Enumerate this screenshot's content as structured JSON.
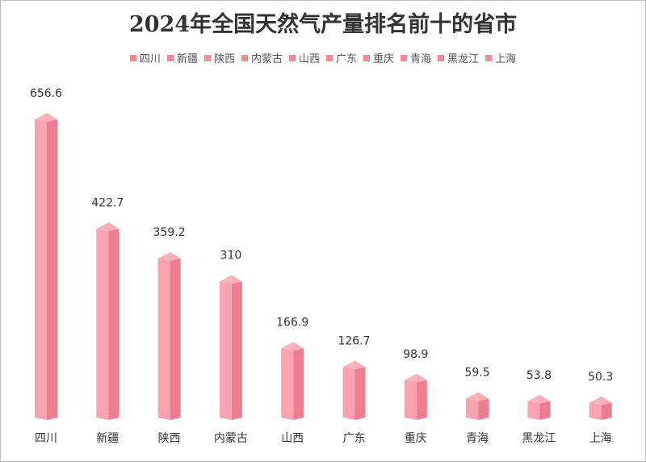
{
  "chart_data": {
    "type": "bar",
    "title": "2024年全国天然气产量排名前十的省市",
    "categories": [
      "四川",
      "新疆",
      "陕西",
      "内蒙古",
      "山西",
      "广东",
      "重庆",
      "青海",
      "黑龙江",
      "上海"
    ],
    "values": [
      656.6,
      422.7,
      359.2,
      310,
      166.9,
      126.7,
      98.9,
      59.5,
      53.8,
      50.3
    ],
    "data_labels": [
      "656.6",
      "422.7",
      "359.2",
      "310",
      "166.9",
      "126.7",
      "98.9",
      "59.5",
      "53.8",
      "50.3"
    ],
    "legend": [
      "四川",
      "新疆",
      "陕西",
      "内蒙古",
      "山西",
      "广东",
      "重庆",
      "青海",
      "黑龙江",
      "上海"
    ],
    "legend_position": "top",
    "ylim": [
      0,
      700
    ],
    "grid": false,
    "xlabel": "",
    "ylabel": "",
    "colors": {
      "bar_front": "#f9a3b0",
      "bar_side": "#ee7d90",
      "bar_top": "#f7b4be",
      "legend_swatch": "#f6889a",
      "label_text": "#333333"
    }
  }
}
